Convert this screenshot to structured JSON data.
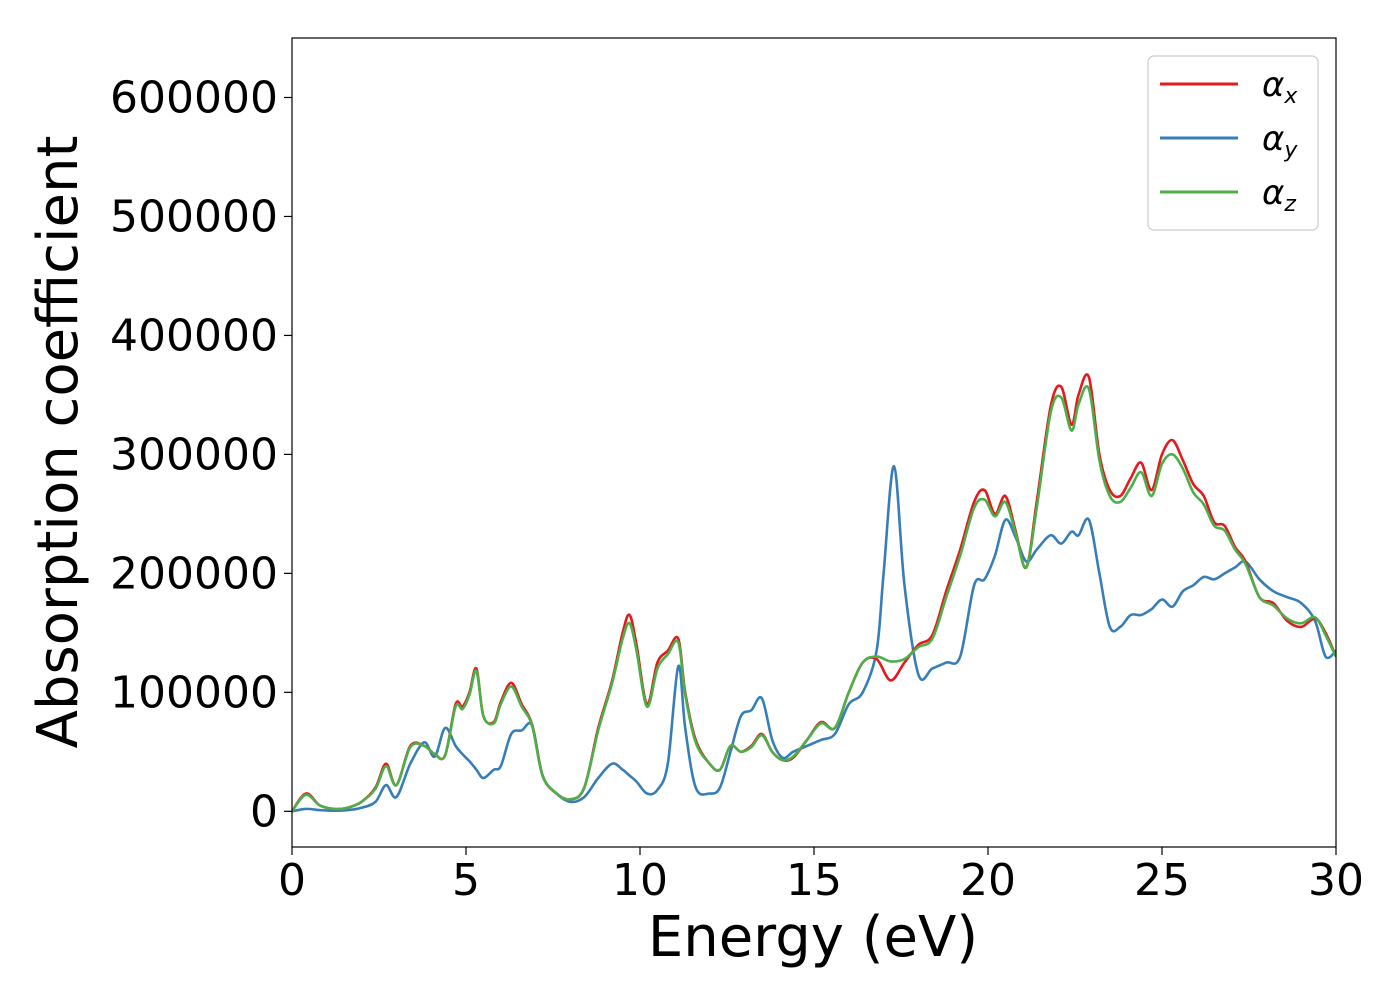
{
  "chart_data": {
    "type": "line",
    "xlabel": "Energy (eV)",
    "ylabel": "Absorption coefficient",
    "xlim": [
      0,
      30
    ],
    "ylim": [
      -30000,
      650000
    ],
    "xticks": [
      0,
      5,
      10,
      15,
      20,
      25,
      30
    ],
    "yticks": [
      0,
      100000,
      200000,
      300000,
      400000,
      500000,
      600000
    ],
    "grid": false,
    "legend_position": "top-right",
    "series": [
      {
        "name": "αx",
        "symbol": "α",
        "subscript": "x",
        "color": "#e41a1c",
        "x": [
          0,
          0.4,
          0.8,
          1.2,
          1.6,
          2.0,
          2.4,
          2.7,
          3.0,
          3.4,
          3.8,
          4.1,
          4.4,
          4.7,
          4.9,
          5.1,
          5.3,
          5.5,
          5.8,
          6.0,
          6.3,
          6.6,
          6.9,
          7.2,
          7.6,
          8.0,
          8.4,
          8.8,
          9.2,
          9.5,
          9.7,
          9.9,
          10.2,
          10.5,
          10.8,
          11.1,
          11.3,
          11.6,
          12.0,
          12.3,
          12.6,
          12.9,
          13.2,
          13.5,
          13.8,
          14.1,
          14.4,
          14.8,
          15.2,
          15.6,
          16.0,
          16.4,
          16.8,
          17.2,
          17.6,
          18.0,
          18.4,
          18.8,
          19.2,
          19.6,
          19.9,
          20.2,
          20.5,
          20.8,
          21.1,
          21.4,
          21.8,
          22.1,
          22.4,
          22.6,
          22.9,
          23.2,
          23.5,
          23.8,
          24.1,
          24.4,
          24.7,
          25.0,
          25.3,
          25.6,
          25.9,
          26.2,
          26.5,
          26.8,
          27.1,
          27.4,
          27.8,
          28.2,
          28.6,
          29.0,
          29.4,
          29.7,
          30.0
        ],
        "y": [
          0,
          15000,
          5000,
          2000,
          3000,
          8000,
          20000,
          40000,
          22000,
          55000,
          55000,
          48000,
          47000,
          90000,
          88000,
          100000,
          120000,
          80000,
          75000,
          92000,
          108000,
          90000,
          73000,
          30000,
          15000,
          10000,
          20000,
          70000,
          110000,
          150000,
          165000,
          140000,
          90000,
          125000,
          135000,
          145000,
          100000,
          60000,
          40000,
          35000,
          55000,
          50000,
          55000,
          65000,
          50000,
          43000,
          45000,
          60000,
          75000,
          70000,
          100000,
          125000,
          128000,
          110000,
          125000,
          140000,
          148000,
          185000,
          220000,
          260000,
          270000,
          250000,
          265000,
          235000,
          205000,
          260000,
          340000,
          357000,
          325000,
          350000,
          365000,
          300000,
          270000,
          265000,
          280000,
          293000,
          270000,
          300000,
          312000,
          295000,
          275000,
          265000,
          243000,
          240000,
          222000,
          210000,
          180000,
          175000,
          160000,
          155000,
          162000,
          150000,
          130000
        ]
      },
      {
        "name": "αy",
        "symbol": "α",
        "subscript": "y",
        "color": "#377eb8",
        "x": [
          0,
          0.4,
          0.8,
          1.2,
          1.6,
          2.0,
          2.4,
          2.7,
          3.0,
          3.4,
          3.8,
          4.1,
          4.4,
          4.7,
          4.9,
          5.1,
          5.3,
          5.5,
          5.8,
          6.0,
          6.3,
          6.6,
          6.9,
          7.2,
          7.6,
          8.0,
          8.4,
          8.8,
          9.2,
          9.5,
          9.7,
          9.9,
          10.2,
          10.5,
          10.8,
          11.1,
          11.3,
          11.6,
          12.0,
          12.3,
          12.6,
          12.9,
          13.2,
          13.5,
          13.8,
          14.1,
          14.4,
          14.8,
          15.2,
          15.6,
          16.0,
          16.4,
          16.8,
          17.0,
          17.3,
          17.6,
          18.0,
          18.4,
          18.8,
          19.2,
          19.6,
          19.9,
          20.2,
          20.5,
          20.8,
          21.1,
          21.4,
          21.8,
          22.1,
          22.4,
          22.6,
          22.9,
          23.2,
          23.5,
          23.8,
          24.1,
          24.4,
          24.7,
          25.0,
          25.3,
          25.6,
          25.9,
          26.2,
          26.5,
          26.8,
          27.1,
          27.4,
          27.8,
          28.2,
          28.6,
          29.0,
          29.4,
          29.7,
          30.0
        ],
        "y": [
          0,
          2000,
          1000,
          500,
          1000,
          3000,
          8000,
          22000,
          12000,
          40000,
          58000,
          46000,
          70000,
          55000,
          48000,
          42000,
          35000,
          28000,
          35000,
          38000,
          65000,
          68000,
          72000,
          30000,
          15000,
          8000,
          12000,
          28000,
          40000,
          35000,
          30000,
          25000,
          15000,
          18000,
          40000,
          122000,
          70000,
          20000,
          15000,
          20000,
          50000,
          80000,
          85000,
          95000,
          60000,
          45000,
          50000,
          55000,
          60000,
          65000,
          90000,
          100000,
          135000,
          200000,
          290000,
          190000,
          115000,
          120000,
          125000,
          130000,
          190000,
          195000,
          215000,
          245000,
          230000,
          210000,
          220000,
          232000,
          225000,
          235000,
          232000,
          245000,
          200000,
          155000,
          155000,
          165000,
          165000,
          170000,
          178000,
          172000,
          185000,
          190000,
          197000,
          195000,
          200000,
          205000,
          210000,
          195000,
          185000,
          180000,
          175000,
          160000,
          130000,
          135000
        ]
      },
      {
        "name": "αz",
        "symbol": "α",
        "subscript": "z",
        "color": "#4daf4a",
        "x": [
          0,
          0.4,
          0.8,
          1.2,
          1.6,
          2.0,
          2.4,
          2.7,
          3.0,
          3.4,
          3.8,
          4.1,
          4.4,
          4.7,
          4.9,
          5.1,
          5.3,
          5.5,
          5.8,
          6.0,
          6.3,
          6.6,
          6.9,
          7.2,
          7.6,
          8.0,
          8.4,
          8.8,
          9.2,
          9.5,
          9.7,
          9.9,
          10.2,
          10.5,
          10.8,
          11.1,
          11.3,
          11.6,
          12.0,
          12.3,
          12.6,
          12.9,
          13.2,
          13.5,
          13.8,
          14.1,
          14.4,
          14.8,
          15.2,
          15.6,
          16.0,
          16.4,
          16.8,
          17.2,
          17.6,
          18.0,
          18.4,
          18.8,
          19.2,
          19.6,
          19.9,
          20.2,
          20.5,
          20.8,
          21.1,
          21.4,
          21.8,
          22.1,
          22.4,
          22.6,
          22.9,
          23.2,
          23.5,
          23.8,
          24.1,
          24.4,
          24.7,
          25.0,
          25.3,
          25.6,
          25.9,
          26.2,
          26.5,
          26.8,
          27.1,
          27.4,
          27.8,
          28.2,
          28.6,
          29.0,
          29.4,
          29.7,
          30.0
        ],
        "y": [
          0,
          14000,
          5000,
          2000,
          3000,
          8000,
          19000,
          38000,
          22000,
          54000,
          55000,
          48000,
          47000,
          88000,
          86000,
          98000,
          118000,
          80000,
          74000,
          90000,
          105000,
          88000,
          72000,
          30000,
          15000,
          10000,
          20000,
          68000,
          108000,
          145000,
          158000,
          135000,
          88000,
          120000,
          132000,
          142000,
          98000,
          58000,
          40000,
          35000,
          55000,
          50000,
          54000,
          64000,
          50000,
          43000,
          46000,
          60000,
          74000,
          70000,
          100000,
          125000,
          130000,
          126000,
          128000,
          138000,
          145000,
          180000,
          215000,
          255000,
          262000,
          248000,
          260000,
          233000,
          205000,
          255000,
          335000,
          348000,
          320000,
          342000,
          355000,
          295000,
          265000,
          260000,
          272000,
          285000,
          265000,
          292000,
          300000,
          288000,
          268000,
          258000,
          240000,
          236000,
          220000,
          208000,
          180000,
          173000,
          162000,
          158000,
          163000,
          148000,
          130000
        ]
      }
    ]
  }
}
